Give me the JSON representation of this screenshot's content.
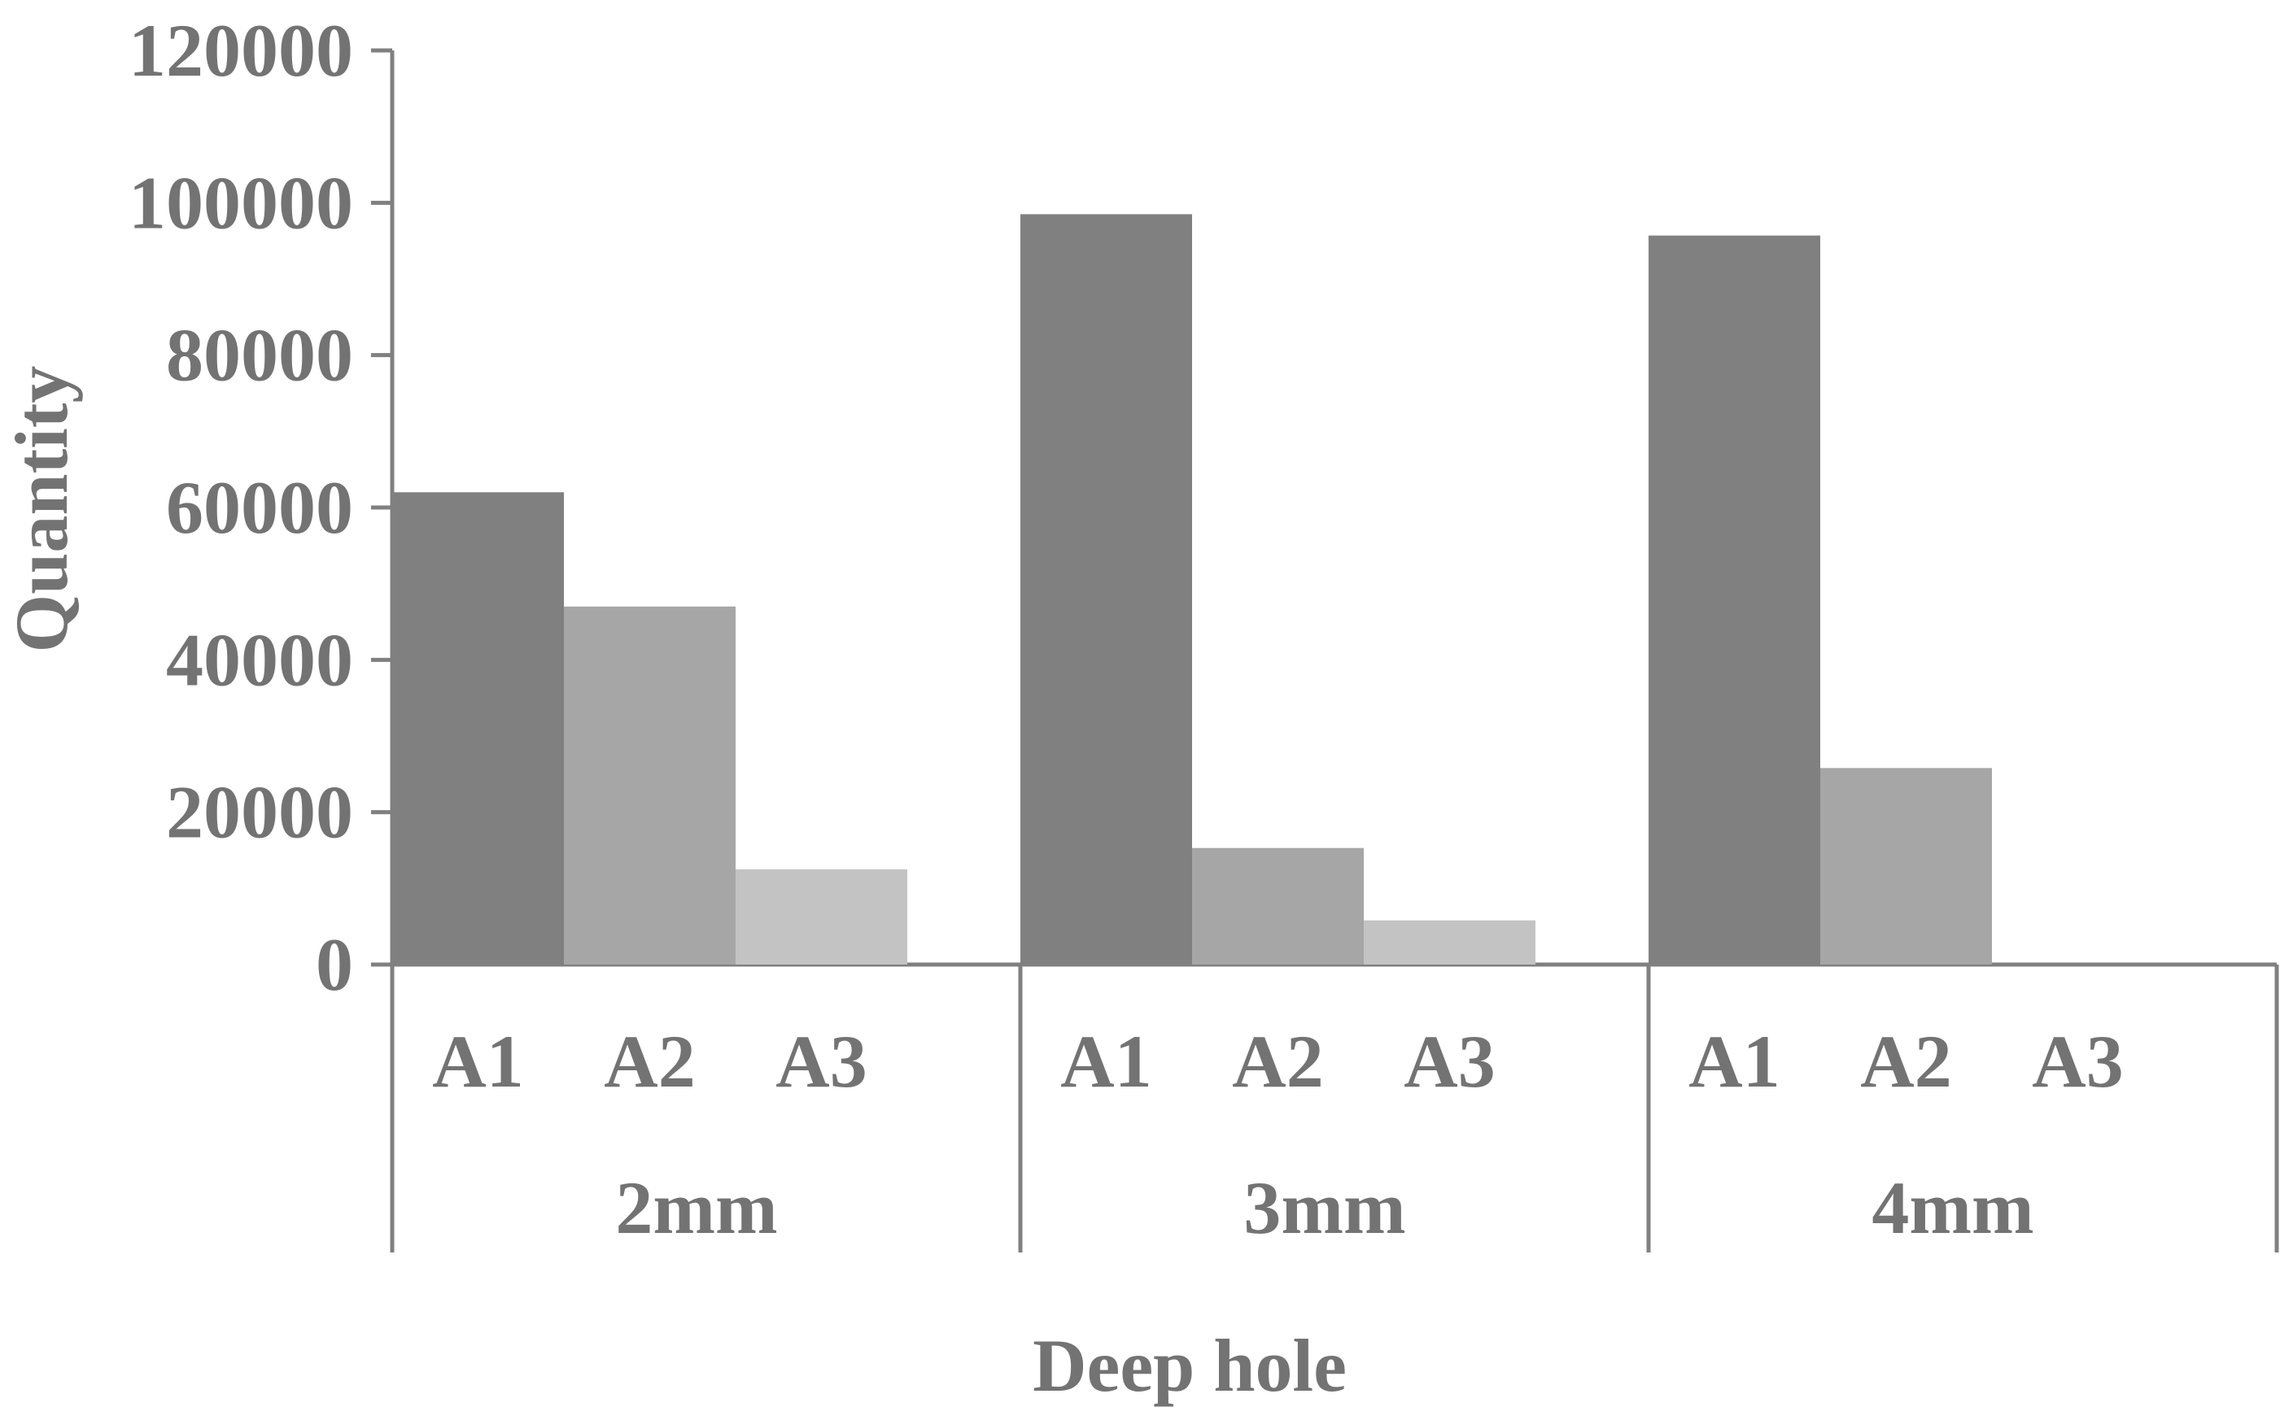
{
  "chart_data": {
    "type": "bar",
    "ylabel": "Quantity",
    "xlabel": "Deep hole",
    "ylim": [
      0,
      120000
    ],
    "yticks": [
      0,
      20000,
      40000,
      60000,
      80000,
      100000,
      120000
    ],
    "groups": [
      {
        "label": "2mm",
        "bars": [
          {
            "label": "A1",
            "value": 62000
          },
          {
            "label": "A2",
            "value": 47000
          },
          {
            "label": "A3",
            "value": 12500
          }
        ]
      },
      {
        "label": "3mm",
        "bars": [
          {
            "label": "A1",
            "value": 98500
          },
          {
            "label": "A2",
            "value": 15300
          },
          {
            "label": "A3",
            "value": 5800
          }
        ]
      },
      {
        "label": "4mm",
        "bars": [
          {
            "label": "A1",
            "value": 95700
          },
          {
            "label": "A2",
            "value": 25800
          },
          {
            "label": "A3",
            "value": 0
          }
        ]
      }
    ],
    "colors": {
      "A1": "#808080",
      "A2": "#a6a6a6",
      "A3": "#c3c3c3",
      "axis": "#808080",
      "text": "#737373"
    },
    "grid": false,
    "legend": "none"
  }
}
